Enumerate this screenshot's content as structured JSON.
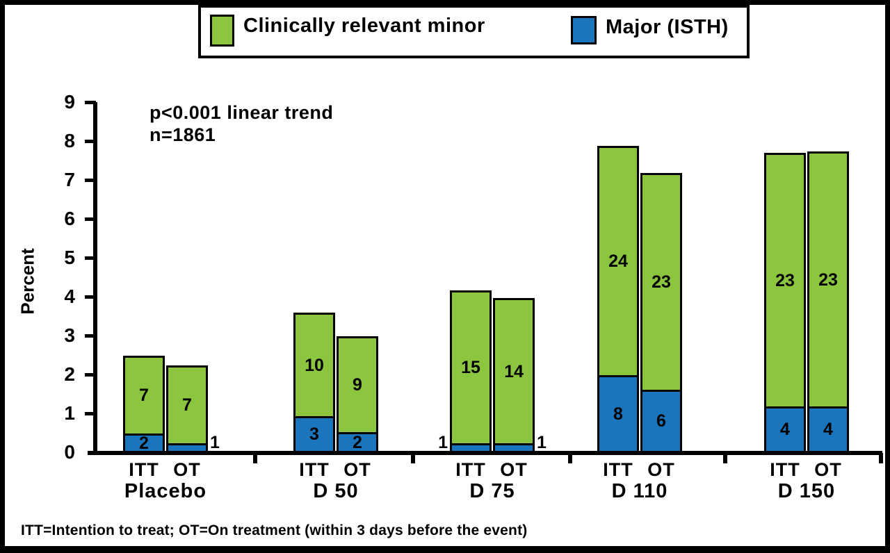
{
  "figure": {
    "ylabel": "Percent",
    "annotation_line1": "p<0.001 linear trend",
    "annotation_line2": "n=1861",
    "footnote": "ITT=Intention to treat; OT=On treatment (within 3 days before the event)"
  },
  "legend": {
    "items": [
      {
        "label": "Clinically relevant minor",
        "color": "#8CC63F"
      },
      {
        "label": "Major (ISTH)",
        "color": "#1B75BC"
      }
    ]
  },
  "chart_data": {
    "type": "bar",
    "stacked": true,
    "title": "",
    "xlabel": "",
    "ylabel": "Percent",
    "ylim": [
      0,
      9
    ],
    "yticks": [
      0,
      1,
      2,
      3,
      4,
      5,
      6,
      7,
      8,
      9
    ],
    "grid": false,
    "legend_position": "top",
    "annotation": [
      "p<0.001 linear trend",
      "n=1861"
    ],
    "series_names": [
      "Major (ISTH)",
      "Clinically relevant minor"
    ],
    "colors": {
      "major": "#1B75BC",
      "minor": "#8CC63F"
    },
    "groups": [
      {
        "label": "Placebo",
        "bars": [
          {
            "arm": "ITT",
            "major_percent": 0.5,
            "minor_percent": 2.0,
            "total_percent": 2.5,
            "major_count": 2,
            "minor_count": 7,
            "major_count_position": "inside"
          },
          {
            "arm": "OT",
            "major_percent": 0.25,
            "minor_percent": 2.0,
            "total_percent": 2.25,
            "major_count": 1,
            "minor_count": 7,
            "major_count_position": "right"
          }
        ]
      },
      {
        "label": "D 50",
        "bars": [
          {
            "arm": "ITT",
            "major_percent": 0.95,
            "minor_percent": 2.65,
            "total_percent": 3.6,
            "major_count": 3,
            "minor_count": 10,
            "major_count_position": "inside"
          },
          {
            "arm": "OT",
            "major_percent": 0.53,
            "minor_percent": 2.47,
            "total_percent": 3.0,
            "major_count": 2,
            "minor_count": 9,
            "major_count_position": "inside"
          }
        ]
      },
      {
        "label": "D 75",
        "bars": [
          {
            "arm": "ITT",
            "major_percent": 0.25,
            "minor_percent": 3.92,
            "total_percent": 4.17,
            "major_count": 1,
            "minor_count": 15,
            "major_count_position": "left"
          },
          {
            "arm": "OT",
            "major_percent": 0.25,
            "minor_percent": 3.73,
            "total_percent": 3.98,
            "major_count": 1,
            "minor_count": 14,
            "major_count_position": "right"
          }
        ]
      },
      {
        "label": "D 110",
        "bars": [
          {
            "arm": "ITT",
            "major_percent": 2.0,
            "minor_percent": 5.9,
            "total_percent": 7.9,
            "major_count": 8,
            "minor_count": 24,
            "major_count_position": "inside"
          },
          {
            "arm": "OT",
            "major_percent": 1.63,
            "minor_percent": 5.57,
            "total_percent": 7.2,
            "major_count": 6,
            "minor_count": 23,
            "major_count_position": "inside"
          }
        ]
      },
      {
        "label": "D 150",
        "bars": [
          {
            "arm": "ITT",
            "major_percent": 1.2,
            "minor_percent": 6.52,
            "total_percent": 7.72,
            "major_count": 4,
            "minor_count": 23,
            "major_count_position": "inside"
          },
          {
            "arm": "OT",
            "major_percent": 1.2,
            "minor_percent": 6.55,
            "total_percent": 7.75,
            "major_count": 4,
            "minor_count": 23,
            "major_count_position": "inside"
          }
        ]
      }
    ],
    "footnote": "ITT=Intention to treat; OT=On treatment (within 3 days before the event)"
  }
}
